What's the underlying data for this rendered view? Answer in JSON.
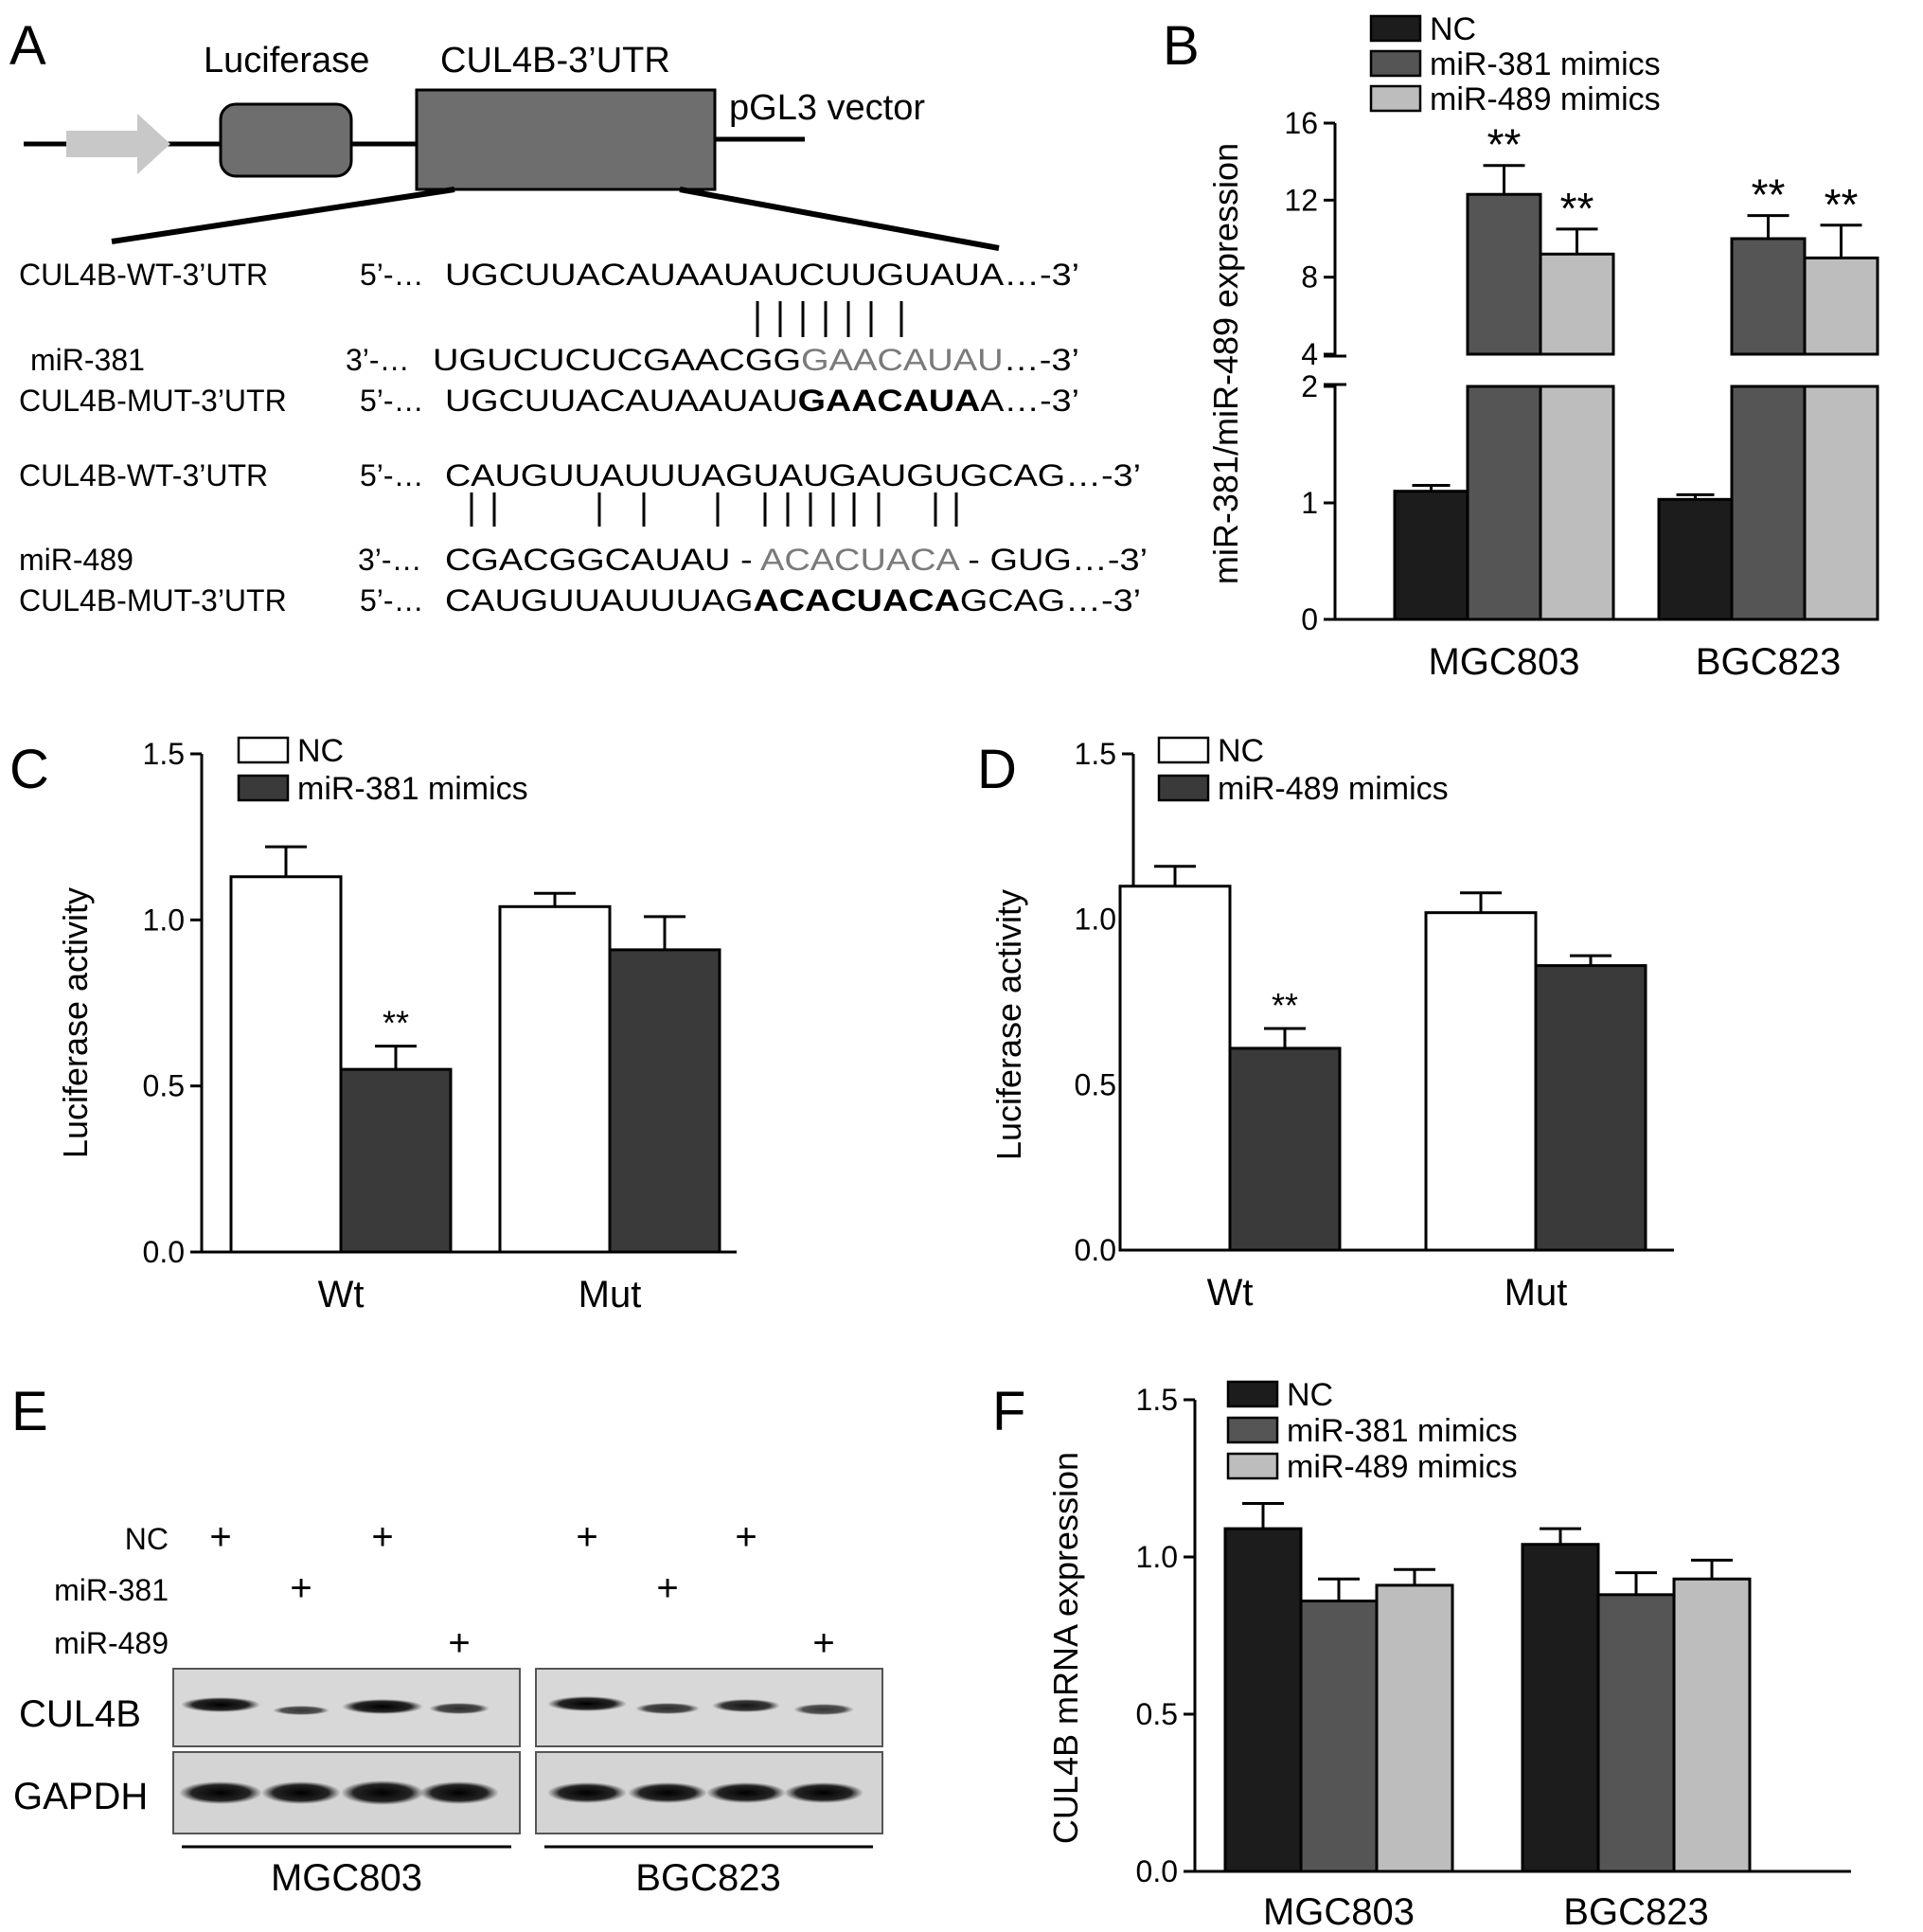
{
  "colors": {
    "nc": "#1c1c1c",
    "mir381": "#555555",
    "mir489": "#bdbdbd",
    "dark": "#3a3a3a",
    "white": "#ffffff",
    "arrow": "#c8c8c8"
  },
  "panelA": {
    "label": "A",
    "luciferase": "Luciferase",
    "utr": "CUL4B-3’UTR",
    "vector": "pGL3 vector",
    "rows": [
      {
        "name": "CUL4B-WT-3’UTR",
        "prime": "5’-…",
        "seq": "UGCUUACAUAAUAUCUUGUAUA…-3’"
      },
      {
        "name": "miR-381",
        "prime": "3’-…",
        "seq_pre": "UGUCUCUCGAACGG",
        "seq_grey": "GAACAUAU",
        "seq_post": "…-3’"
      },
      {
        "name": "CUL4B-MUT-3’UTR",
        "prime": "5’-…",
        "seq_pre": "UGCUUACAUAAUAU",
        "seq_bold": "GAACAUA",
        "seq_post": "A…-3’"
      },
      {
        "name": "CUL4B-WT-3’UTR",
        "prime": "5’-…",
        "seq": "CAUGUUAUUUAGUAUGAUGUGCAG…-3’"
      },
      {
        "name": "miR-489",
        "prime": "3’-…",
        "seq_pre": "CGACGGCAUAU - ",
        "seq_grey": "ACACUACA",
        "seq_post": " - GUG…-3’"
      },
      {
        "name": "CUL4B-MUT-3’UTR",
        "prime": "5’-…",
        "seq_pre": "CAUGUUAUUUAG",
        "seq_bold": "ACACUACA",
        "seq_post": "GCAG…-3’"
      }
    ]
  },
  "panelE": {
    "label": "E",
    "row_labels": [
      "NC",
      "miR-381",
      "miR-489"
    ],
    "lanes": [
      [
        "+",
        "",
        "+",
        ""
      ],
      [
        "",
        "+",
        "",
        ""
      ],
      [
        "",
        "",
        "",
        "+"
      ],
      [
        "+",
        "",
        "+",
        ""
      ],
      [
        "",
        "+",
        "",
        ""
      ],
      [
        "",
        "",
        "",
        "+"
      ]
    ],
    "blot_labels": [
      "CUL4B",
      "GAPDH"
    ],
    "groups": [
      "MGC803",
      "BGC823"
    ]
  },
  "chart_data": [
    {
      "panel": "B",
      "type": "bar",
      "ylabel": "miR-381/miR-489 expression",
      "categories": [
        "MGC803",
        "BGC823"
      ],
      "yticks_lower": [
        "0",
        "1",
        "2"
      ],
      "yticks_upper": [
        "4",
        "8",
        "12",
        "16"
      ],
      "axis_break": [
        2,
        4
      ],
      "series": [
        {
          "name": "NC",
          "values": [
            1.1,
            1.03
          ],
          "errors": [
            0.05,
            0.04
          ],
          "sig": [
            "",
            ""
          ]
        },
        {
          "name": "miR-381 mimics",
          "values": [
            12.3,
            10.0
          ],
          "errors": [
            1.5,
            1.2
          ],
          "sig": [
            "**",
            "**"
          ]
        },
        {
          "name": "miR-489 mimics",
          "values": [
            9.2,
            9.0
          ],
          "errors": [
            1.3,
            1.7
          ],
          "sig": [
            "**",
            "**"
          ]
        }
      ]
    },
    {
      "panel": "C",
      "type": "bar",
      "ylabel": "Luciferase activity",
      "categories": [
        "Wt",
        "Mut"
      ],
      "ylim": [
        0,
        1.5
      ],
      "yticks": [
        "0.0",
        "0.5",
        "1.0",
        "1.5"
      ],
      "series": [
        {
          "name": "NC",
          "values": [
            1.13,
            1.04
          ],
          "errors": [
            0.09,
            0.04
          ],
          "sig": [
            "",
            ""
          ]
        },
        {
          "name": "miR-381 mimics",
          "values": [
            0.55,
            0.91
          ],
          "errors": [
            0.07,
            0.1
          ],
          "sig": [
            "**",
            ""
          ]
        }
      ]
    },
    {
      "panel": "D",
      "type": "bar",
      "ylabel": "Luciferase activity",
      "categories": [
        "Wt",
        "Mut"
      ],
      "ylim": [
        0,
        1.5
      ],
      "yticks": [
        "0.0",
        "0.5",
        "1.0",
        "1.5"
      ],
      "series": [
        {
          "name": "NC",
          "values": [
            1.1,
            1.02
          ],
          "errors": [
            0.06,
            0.06
          ],
          "sig": [
            "",
            ""
          ]
        },
        {
          "name": "miR-489 mimics",
          "values": [
            0.61,
            0.86
          ],
          "errors": [
            0.06,
            0.03
          ],
          "sig": [
            "**",
            ""
          ]
        }
      ]
    },
    {
      "panel": "F",
      "type": "bar",
      "ylabel": "CUL4B mRNA expression",
      "categories": [
        "MGC803",
        "BGC823"
      ],
      "ylim": [
        0,
        1.5
      ],
      "yticks": [
        "0.0",
        "0.5",
        "1.0",
        "1.5"
      ],
      "series": [
        {
          "name": "NC",
          "values": [
            1.09,
            1.04
          ],
          "errors": [
            0.08,
            0.05
          ],
          "sig": [
            "",
            ""
          ]
        },
        {
          "name": "miR-381 mimics",
          "values": [
            0.86,
            0.88
          ],
          "errors": [
            0.07,
            0.07
          ],
          "sig": [
            "",
            ""
          ]
        },
        {
          "name": "miR-489 mimics",
          "values": [
            0.91,
            0.93
          ],
          "errors": [
            0.05,
            0.06
          ],
          "sig": [
            "",
            ""
          ]
        }
      ]
    }
  ]
}
